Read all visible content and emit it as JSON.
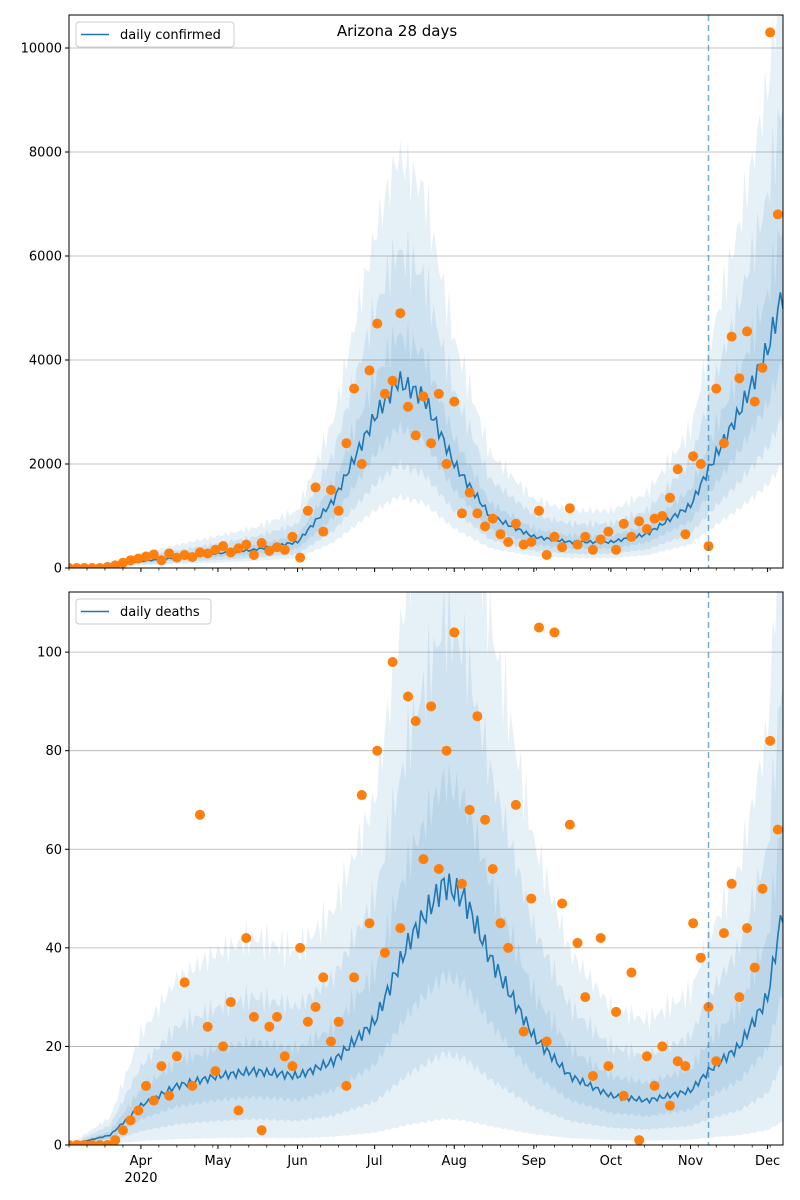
{
  "chart_data": [
    {
      "type": "line",
      "title": "Arizona 28 days",
      "legend": {
        "label": "daily confirmed",
        "placement": "top-left"
      },
      "ylim": [
        0,
        10635
      ],
      "yticks": [
        0,
        2000,
        4000,
        6000,
        8000,
        10000
      ],
      "grid": "y",
      "x_start_date": "2020-03-04",
      "x_end_day": 278,
      "forecast_start_day": 249,
      "mean_knots": [
        [
          0,
          0
        ],
        [
          14,
          20
        ],
        [
          28,
          130
        ],
        [
          42,
          200
        ],
        [
          58,
          280
        ],
        [
          72,
          350
        ],
        [
          89,
          500
        ],
        [
          103,
          1300
        ],
        [
          119,
          2900
        ],
        [
          128,
          3600
        ],
        [
          138,
          3300
        ],
        [
          150,
          2000
        ],
        [
          164,
          1000
        ],
        [
          181,
          600
        ],
        [
          195,
          500
        ],
        [
          211,
          500
        ],
        [
          225,
          650
        ],
        [
          242,
          1200
        ],
        [
          249,
          1900
        ],
        [
          261,
          3000
        ],
        [
          272,
          4200
        ],
        [
          278,
          5300
        ]
      ],
      "band_lower_factors": [
        0.75,
        0.55,
        0.38
      ],
      "band_upper_factors": [
        1.25,
        1.7,
        2.2
      ],
      "observed_step_days": 3,
      "observed": [
        0,
        0,
        0,
        0,
        0,
        20,
        50,
        100,
        150,
        180,
        220,
        260,
        150,
        280,
        200,
        250,
        210,
        300,
        280,
        350,
        420,
        300,
        380,
        450,
        250,
        480,
        330,
        400,
        350,
        600,
        200,
        1100,
        1550,
        700,
        1500,
        1100,
        2400,
        3450,
        2000,
        3800,
        4700,
        3350,
        3600,
        4900,
        3100,
        2550,
        3300,
        2400,
        3350,
        2000,
        3200,
        1050,
        1450,
        1050,
        800,
        950,
        650,
        500,
        850,
        450,
        500,
        1100,
        250,
        600,
        400,
        1150,
        450,
        600,
        350,
        550,
        700,
        350,
        850,
        600,
        900,
        750,
        950,
        1000,
        1350,
        1900,
        650,
        2150,
        2000,
        420,
        3450,
        2400,
        4450,
        3650,
        4550,
        3200,
        3850,
        10300,
        6800
      ]
    },
    {
      "type": "line",
      "legend": {
        "label": "daily deaths",
        "placement": "top-left"
      },
      "ylim": [
        0,
        112.2
      ],
      "yticks": [
        0,
        20,
        40,
        60,
        80,
        100
      ],
      "grid": "y",
      "x_start_date": "2020-03-04",
      "x_end_day": 278,
      "forecast_start_day": 249,
      "xticks": [
        {
          "day": 28,
          "label": "Apr"
        },
        {
          "day": 58,
          "label": "May"
        },
        {
          "day": 89,
          "label": "Jun"
        },
        {
          "day": 119,
          "label": "Jul"
        },
        {
          "day": 150,
          "label": "Aug"
        },
        {
          "day": 181,
          "label": "Sep"
        },
        {
          "day": 211,
          "label": "Oct"
        },
        {
          "day": 242,
          "label": "Nov"
        },
        {
          "day": 272,
          "label": "Dec"
        }
      ],
      "year_label": "2020",
      "mean_knots": [
        [
          0,
          0
        ],
        [
          16,
          2
        ],
        [
          28,
          8
        ],
        [
          42,
          12
        ],
        [
          58,
          14
        ],
        [
          72,
          15
        ],
        [
          89,
          14
        ],
        [
          103,
          17
        ],
        [
          119,
          25
        ],
        [
          133,
          42
        ],
        [
          146,
          53
        ],
        [
          154,
          50
        ],
        [
          164,
          38
        ],
        [
          181,
          22
        ],
        [
          195,
          14
        ],
        [
          211,
          10
        ],
        [
          225,
          9
        ],
        [
          242,
          11
        ],
        [
          249,
          15
        ],
        [
          261,
          20
        ],
        [
          272,
          30
        ],
        [
          278,
          48
        ]
      ],
      "band_lower_factors": [
        0.65,
        0.35,
        0.1
      ],
      "band_upper_factors": [
        1.4,
        2.0,
        2.8
      ],
      "observed_step_days": 3,
      "observed": [
        0,
        0,
        0,
        0,
        0,
        0,
        1,
        3,
        5,
        7,
        12,
        9,
        16,
        10,
        18,
        33,
        12,
        67,
        24,
        15,
        20,
        29,
        7,
        42,
        26,
        3,
        24,
        26,
        18,
        16,
        40,
        25,
        28,
        34,
        21,
        25,
        12,
        34,
        71,
        45,
        80,
        39,
        98,
        44,
        91,
        86,
        58,
        89,
        56,
        80,
        104,
        53,
        68,
        87,
        66,
        56,
        45,
        40,
        69,
        23,
        50,
        105,
        21,
        104,
        49,
        65,
        41,
        30,
        14,
        42,
        16,
        27,
        10,
        35,
        1,
        18,
        12,
        20,
        8,
        17,
        16,
        45,
        38,
        28,
        17,
        43,
        53,
        30,
        44,
        36,
        52,
        82,
        64
      ]
    }
  ],
  "colors": {
    "mean": "#1f77b4",
    "observed": "#ff7f0e",
    "band": "#1f77b4",
    "grid": "#b0b0b0"
  }
}
